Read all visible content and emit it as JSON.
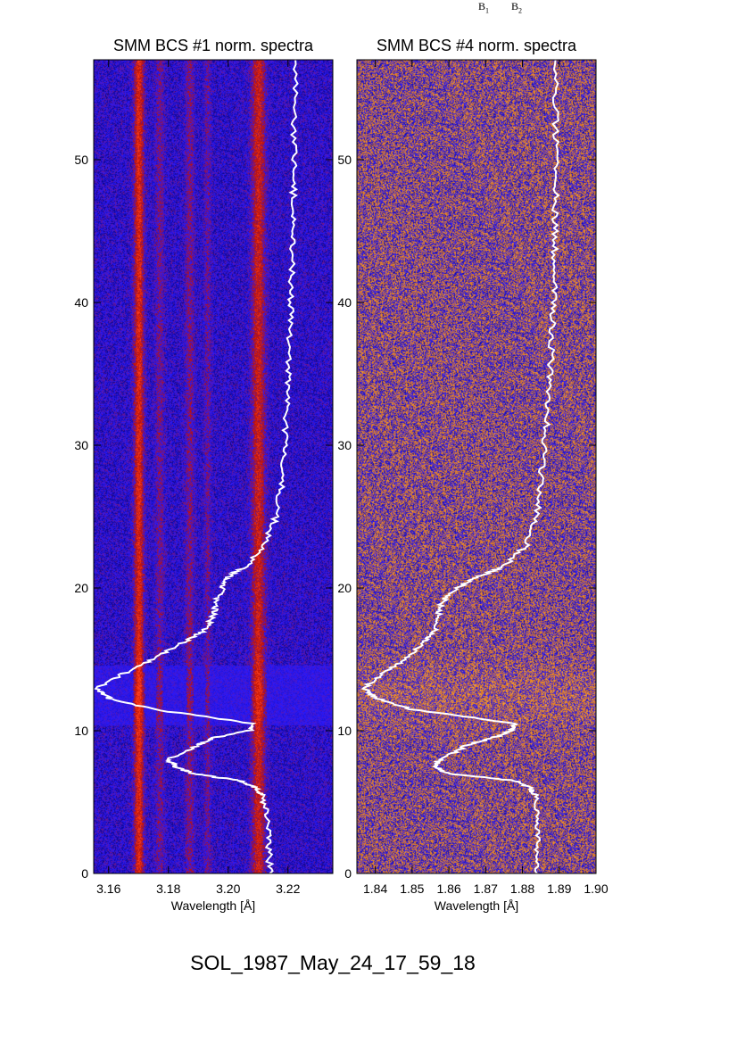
{
  "figure": {
    "caption": "SOL_1987_May_24_17_59_18",
    "corner_labels": [
      "B",
      "B"
    ],
    "corner_subs": [
      "1",
      "2"
    ]
  },
  "chart_data": [
    {
      "type": "heatmap",
      "title": "SMM BCS #1 norm. spectra",
      "xlabel": "Wavelength [Å]",
      "ylabel": "",
      "xlim": [
        3.155,
        3.235
      ],
      "ylim": [
        0,
        57
      ],
      "xticks": [
        3.16,
        3.18,
        3.2,
        3.22
      ],
      "xtick_labels": [
        "3.16",
        "3.18",
        "3.20",
        "3.22"
      ],
      "yticks": [
        0,
        10,
        20,
        30,
        40,
        50
      ],
      "ytick_labels": [
        "0",
        "10",
        "20",
        "30",
        "40",
        "50"
      ],
      "colormap": [
        "#08006a",
        "#2a1aff",
        "#c01000",
        "#ff4020"
      ],
      "emission_lines": [
        {
          "center": 3.17,
          "width": 0.0016,
          "strength": 1.0
        },
        {
          "center": 3.177,
          "width": 0.0015,
          "strength": 0.35
        },
        {
          "center": 3.187,
          "width": 0.0015,
          "strength": 0.4
        },
        {
          "center": 3.193,
          "width": 0.0012,
          "strength": 0.3
        },
        {
          "center": 3.21,
          "width": 0.0022,
          "strength": 0.85
        }
      ],
      "overlay_curve": {
        "color": "#ffffff",
        "x": [
          3.214,
          3.2135,
          3.213,
          3.2115,
          3.209,
          3.204,
          3.188,
          3.182,
          3.18,
          3.19,
          3.195,
          3.207,
          3.2085,
          3.175,
          3.16,
          3.156,
          3.165,
          3.175,
          3.185,
          3.192,
          3.195,
          3.196,
          3.198,
          3.2,
          3.206,
          3.212,
          3.216,
          3.218,
          3.219,
          3.2195,
          3.22,
          3.2205,
          3.221,
          3.2212,
          3.2215,
          3.2218,
          3.222,
          3.2222,
          3.2225
        ],
        "y": [
          0,
          2,
          4,
          5.5,
          6,
          6.5,
          7,
          7.5,
          8,
          9,
          9.5,
          10,
          10.5,
          11.5,
          12.3,
          13,
          14,
          15,
          16.2,
          17,
          18,
          19,
          20,
          20.8,
          21.5,
          23,
          25,
          27.5,
          30,
          32.5,
          35,
          37.5,
          40,
          42.5,
          45,
          47.5,
          50,
          53,
          57
        ]
      }
    },
    {
      "type": "heatmap",
      "title": "SMM BCS #4 norm. spectra",
      "xlabel": "Wavelength [Å]",
      "ylabel": "",
      "xlim": [
        1.835,
        1.9
      ],
      "ylim": [
        0,
        57
      ],
      "xticks": [
        1.84,
        1.85,
        1.86,
        1.87,
        1.88,
        1.89,
        1.9
      ],
      "xtick_labels": [
        "1.84",
        "1.85",
        "1.86",
        "1.87",
        "1.88",
        "1.89",
        "1.90"
      ],
      "yticks": [
        0,
        10,
        20,
        30,
        40,
        50
      ],
      "ytick_labels": [
        "0",
        "10",
        "20",
        "30",
        "40",
        "50"
      ],
      "colormap": [
        "#08004a",
        "#2a1aff",
        "#e07818",
        "#ffb040"
      ],
      "overlay_curve": {
        "color": "#ffffff",
        "x": [
          1.884,
          1.884,
          1.8838,
          1.8835,
          1.882,
          1.878,
          1.86,
          1.856,
          1.858,
          1.865,
          1.872,
          1.877,
          1.878,
          1.85,
          1.84,
          1.837,
          1.842,
          1.848,
          1.853,
          1.856,
          1.857,
          1.858,
          1.862,
          1.868,
          1.875,
          1.881,
          1.884,
          1.885,
          1.886,
          1.887,
          1.8875,
          1.888,
          1.8885,
          1.8887,
          1.8888,
          1.889,
          1.889,
          1.889,
          1.889
        ],
        "y": [
          0,
          2,
          4,
          5.5,
          6,
          6.5,
          7,
          7.5,
          8,
          9,
          9.5,
          10,
          10.5,
          11.5,
          12.3,
          13,
          14,
          15,
          16.2,
          17,
          18,
          19,
          20,
          20.8,
          21.5,
          23,
          25,
          27.5,
          30,
          32.5,
          35,
          37.5,
          40,
          42.5,
          45,
          47.5,
          50,
          53,
          57
        ]
      }
    }
  ]
}
